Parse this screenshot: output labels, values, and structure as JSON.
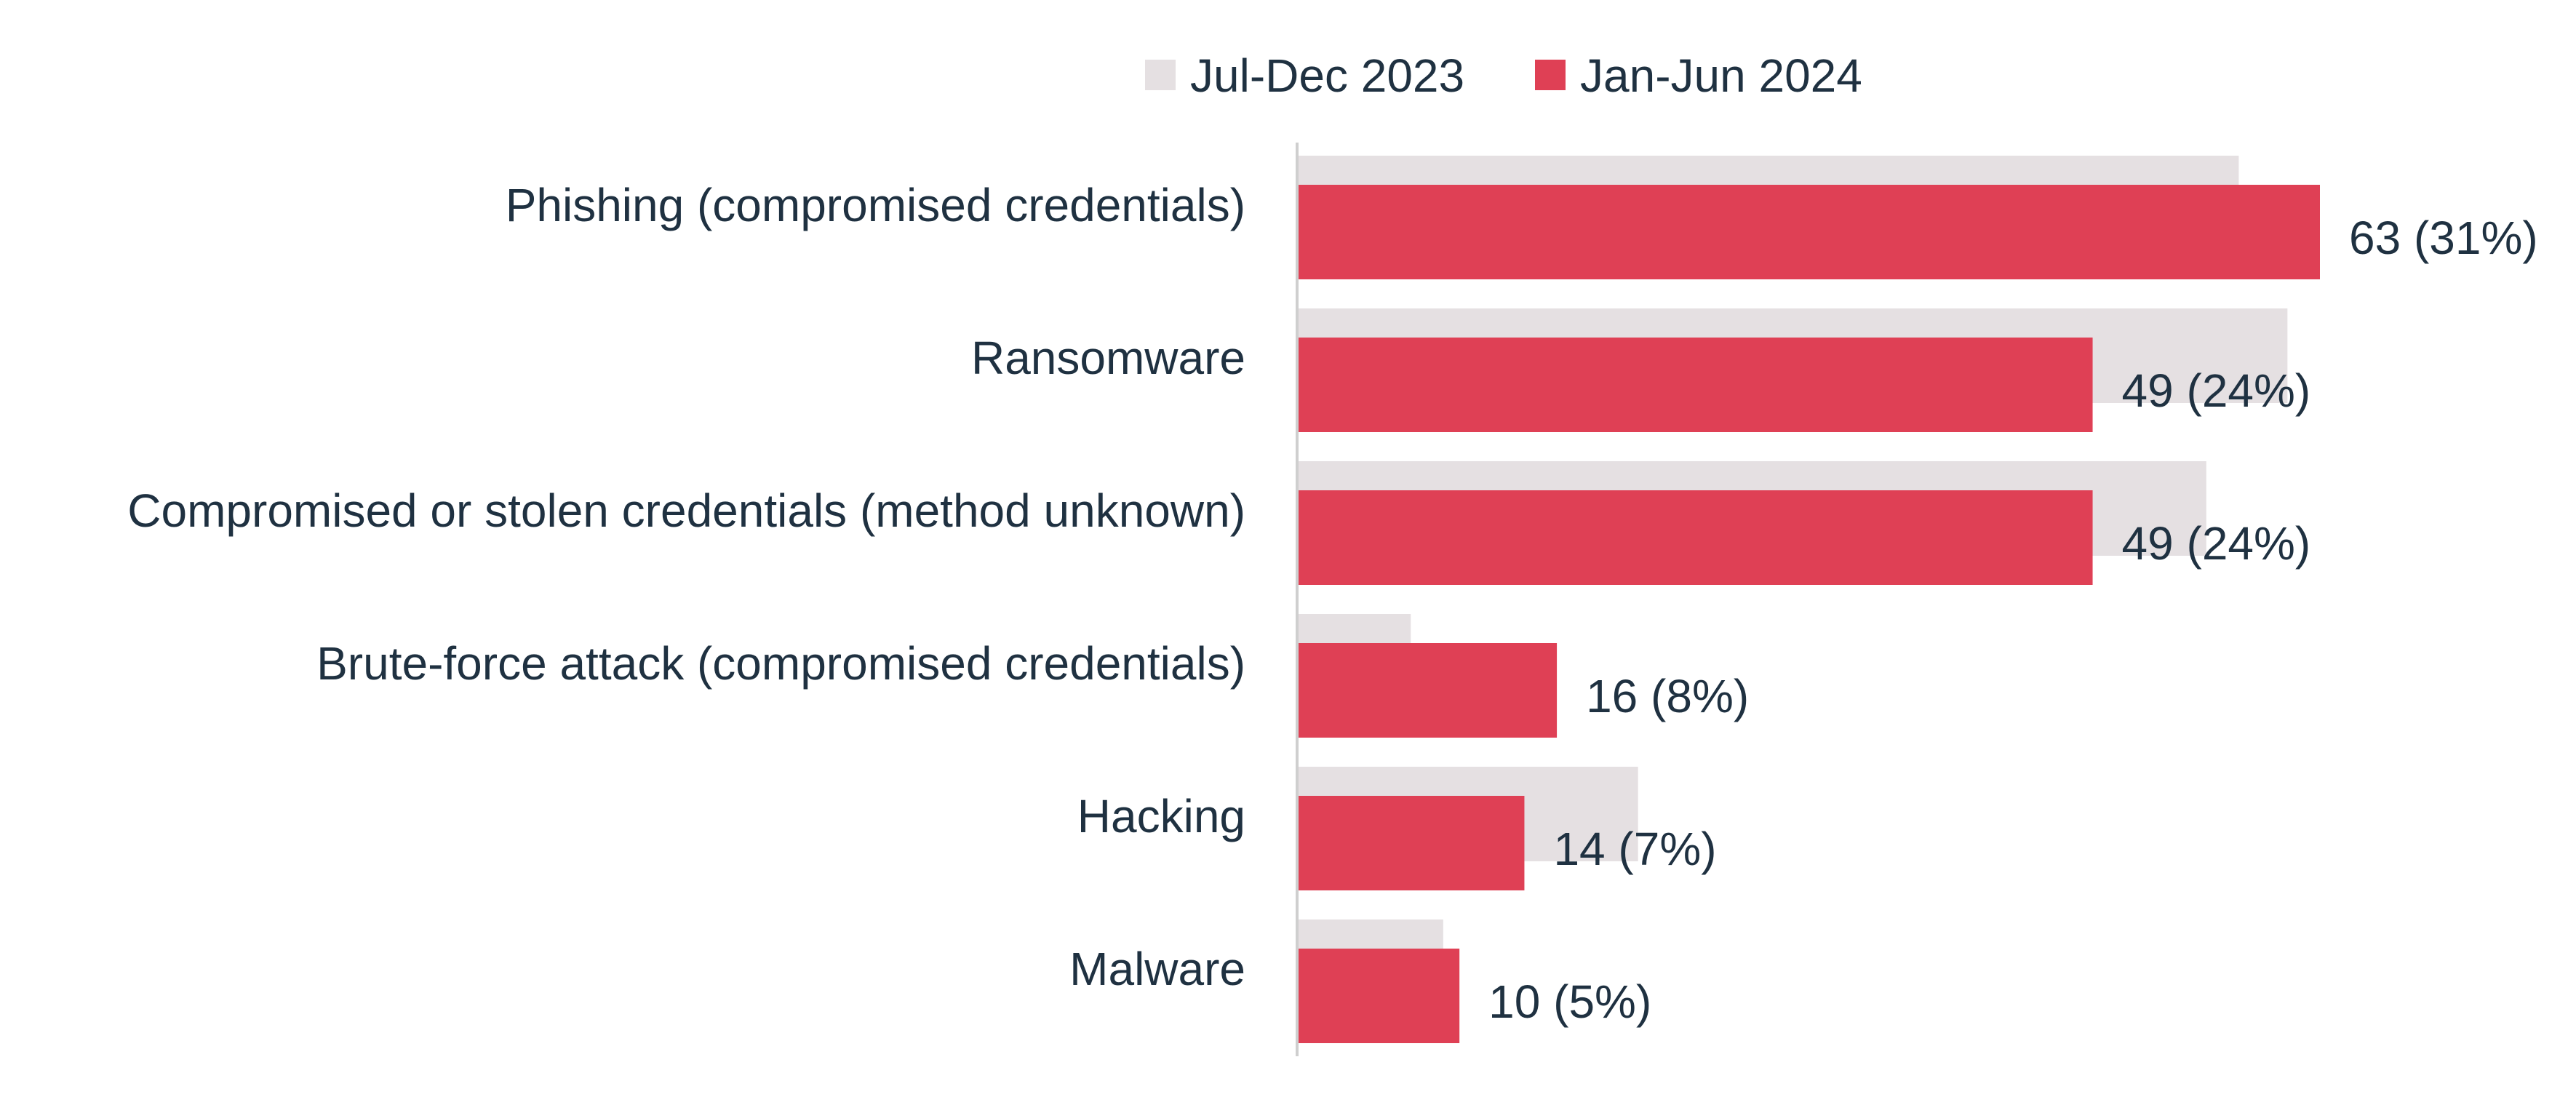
{
  "chart_data": {
    "type": "bar",
    "orientation": "horizontal",
    "legend_position": "top-center",
    "grid": false,
    "xlim": [
      0,
      63
    ],
    "categories": [
      "Phishing (compromised credentials)",
      "Ransomware",
      "Compromised or stolen credentials (method unknown)",
      "Brute-force attack (compromised credentials)",
      "Hacking",
      "Malware"
    ],
    "series": [
      {
        "name": "Jul-Dec 2023",
        "color": "#e5e0e2",
        "values": [
          58,
          61,
          56,
          7,
          21,
          9
        ]
      },
      {
        "name": "Jan-Jun 2024",
        "color": "#df4055",
        "values": [
          63,
          49,
          49,
          16,
          14,
          10
        ]
      }
    ],
    "data_labels": [
      "63 (31%)",
      "49 (24%)",
      "49 (24%)",
      "16 (8%)",
      "14 (7%)",
      "10 (5%)"
    ]
  },
  "colors": {
    "text": "#1f3141",
    "axis": "#cfcfcf"
  }
}
